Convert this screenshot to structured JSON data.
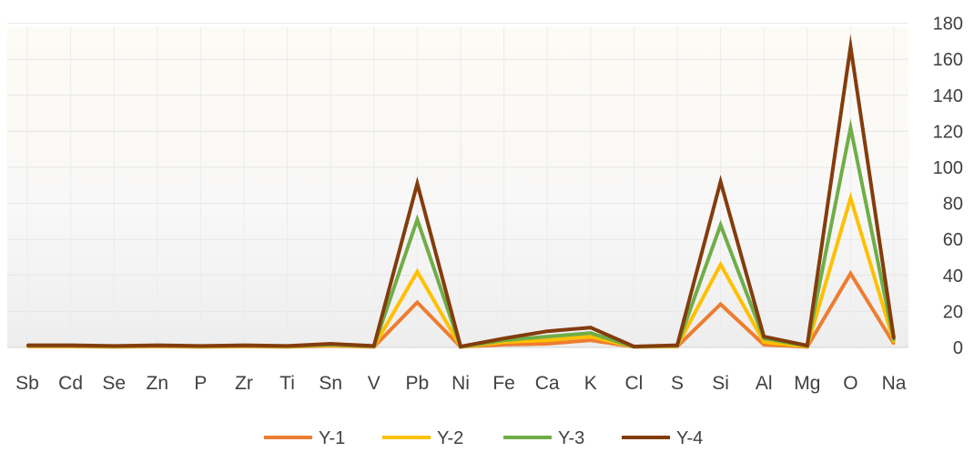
{
  "chart_data": {
    "type": "line",
    "categories": [
      "Sb",
      "Cd",
      "Se",
      "Zn",
      "P",
      "Zr",
      "Ti",
      "Sn",
      "V",
      "Pb",
      "Ni",
      "Fe",
      "Ca",
      "K",
      "Cl",
      "S",
      "Si",
      "Al",
      "Mg",
      "O",
      "Na"
    ],
    "series": [
      {
        "name": "Y-1",
        "color": "#ED7D31",
        "values": [
          0.5,
          0.5,
          0.3,
          0.5,
          0.3,
          0.5,
          0.3,
          0.8,
          0.3,
          25,
          0.3,
          1.5,
          2,
          4,
          0.3,
          0.5,
          24,
          1.5,
          0.3,
          41,
          2
        ]
      },
      {
        "name": "Y-2",
        "color": "#FFC000",
        "values": [
          0.8,
          0.8,
          0.5,
          0.8,
          0.5,
          0.8,
          0.5,
          1.2,
          0.5,
          42,
          0.3,
          3,
          4,
          6,
          0.3,
          0.8,
          46,
          3,
          0.5,
          83,
          3
        ]
      },
      {
        "name": "Y-3",
        "color": "#70AD47",
        "values": [
          1,
          1,
          0.6,
          1,
          0.6,
          1,
          0.6,
          1.5,
          0.6,
          71,
          0.3,
          4,
          6,
          8,
          0.3,
          1,
          68,
          5,
          0.8,
          122,
          4
        ]
      },
      {
        "name": "Y-4",
        "color": "#843C0C",
        "values": [
          1.2,
          1.2,
          0.8,
          1.2,
          0.8,
          1.2,
          0.8,
          2,
          0.8,
          91,
          0.5,
          5,
          9,
          11,
          0.5,
          1.2,
          92,
          6,
          1,
          167,
          5
        ]
      }
    ],
    "y_ticks": [
      "0",
      "20",
      "40",
      "60",
      "80",
      "100",
      "120",
      "140",
      "160",
      "180"
    ],
    "ylim": [
      0,
      180
    ],
    "grid": true,
    "y_axis_position": "right",
    "legend_position": "bottom"
  }
}
